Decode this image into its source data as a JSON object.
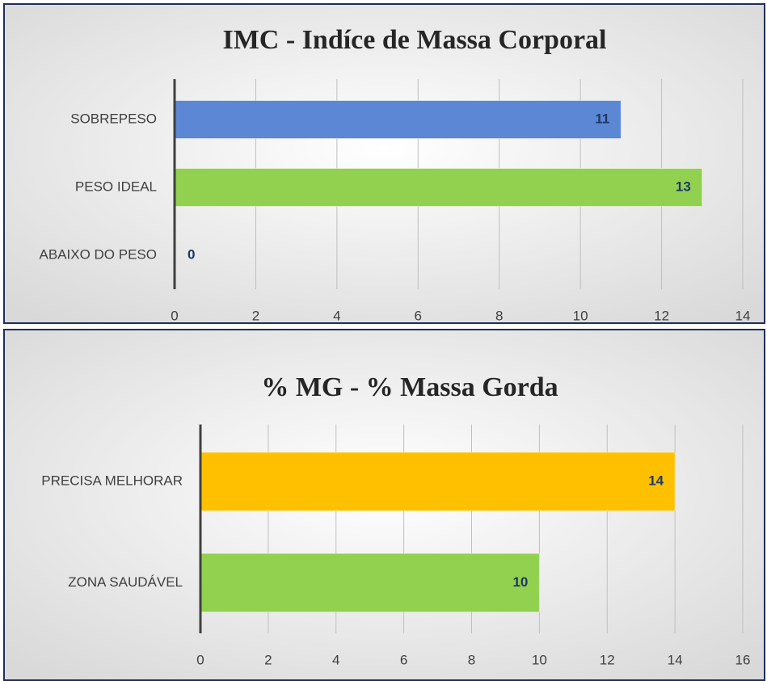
{
  "chart_data": [
    {
      "type": "bar",
      "title": "IMC - Indíce de Massa Corporal",
      "categories": [
        "SOBREPESO",
        "PESO IDEAL",
        "ABAIXO DO PESO"
      ],
      "values": [
        11,
        13,
        0
      ],
      "colors": [
        "#5b87d4",
        "#92d050",
        "#92d050"
      ],
      "xlim": [
        0,
        14
      ],
      "xticks": [
        0,
        2,
        4,
        6,
        8,
        10,
        12,
        14
      ],
      "grid": true
    },
    {
      "type": "bar",
      "title": "% MG - % Massa Gorda",
      "categories": [
        "PRECISA MELHORAR",
        "ZONA SAUDÁVEL"
      ],
      "values": [
        14,
        10
      ],
      "colors": [
        "#ffc000",
        "#92d050"
      ],
      "xlim": [
        0,
        16
      ],
      "xticks": [
        0,
        2,
        4,
        6,
        8,
        10,
        12,
        14,
        16
      ],
      "grid": true
    }
  ]
}
